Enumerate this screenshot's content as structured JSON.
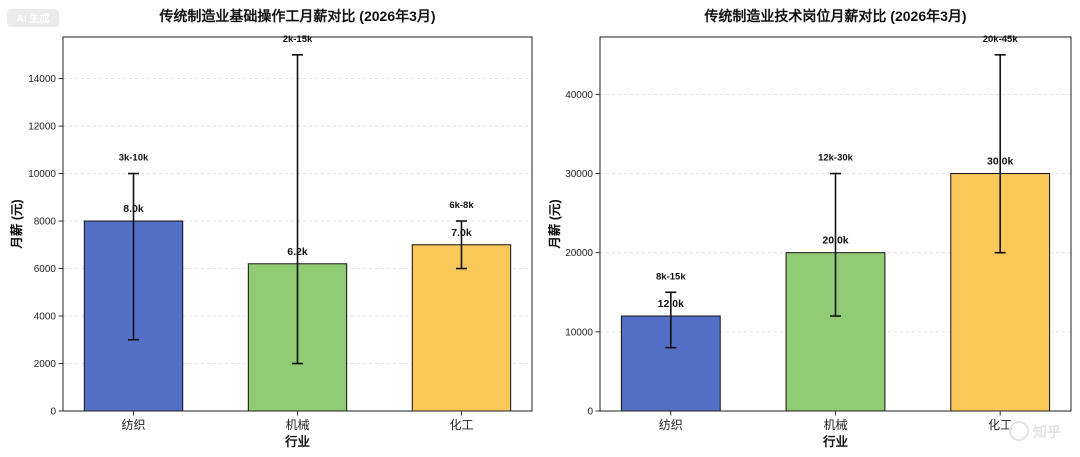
{
  "watermark": {
    "badge_text": "AI 生成",
    "logo_text": "知乎"
  },
  "chart_data": [
    {
      "type": "bar",
      "title": "传统制造业基础操作工月薪对比 (2026年3月)",
      "xlabel": "行业",
      "ylabel": "月薪 (元)",
      "categories": [
        "纺织",
        "机械",
        "化工"
      ],
      "values": [
        8000,
        6200,
        7000
      ],
      "value_labels": [
        "8.0k",
        "6.2k",
        "7.0k"
      ],
      "range_low": [
        3000,
        2000,
        6000
      ],
      "range_high": [
        10000,
        15000,
        8000
      ],
      "range_labels": [
        "3k-10k",
        "2k-15k",
        "6k-8k"
      ],
      "bar_colors": [
        "#5470c6",
        "#91cc75",
        "#fac858"
      ],
      "yticks": [
        0,
        2000,
        4000,
        6000,
        8000,
        10000,
        12000,
        14000
      ],
      "ylim": [
        0,
        15750
      ],
      "grid": true
    },
    {
      "type": "bar",
      "title": "传统制造业技术岗位月薪对比 (2026年3月)",
      "xlabel": "行业",
      "ylabel": "月薪 (元)",
      "categories": [
        "纺织",
        "机械",
        "化工"
      ],
      "values": [
        12000,
        20000,
        30000
      ],
      "value_labels": [
        "12.0k",
        "20.0k",
        "30.0k"
      ],
      "range_low": [
        8000,
        12000,
        20000
      ],
      "range_high": [
        15000,
        30000,
        45000
      ],
      "range_labels": [
        "8k-15k",
        "12k-30k",
        "20k-45k"
      ],
      "bar_colors": [
        "#5470c6",
        "#91cc75",
        "#fac858"
      ],
      "yticks": [
        0,
        10000,
        20000,
        30000,
        40000
      ],
      "ylim": [
        0,
        47250
      ],
      "grid": true
    }
  ]
}
